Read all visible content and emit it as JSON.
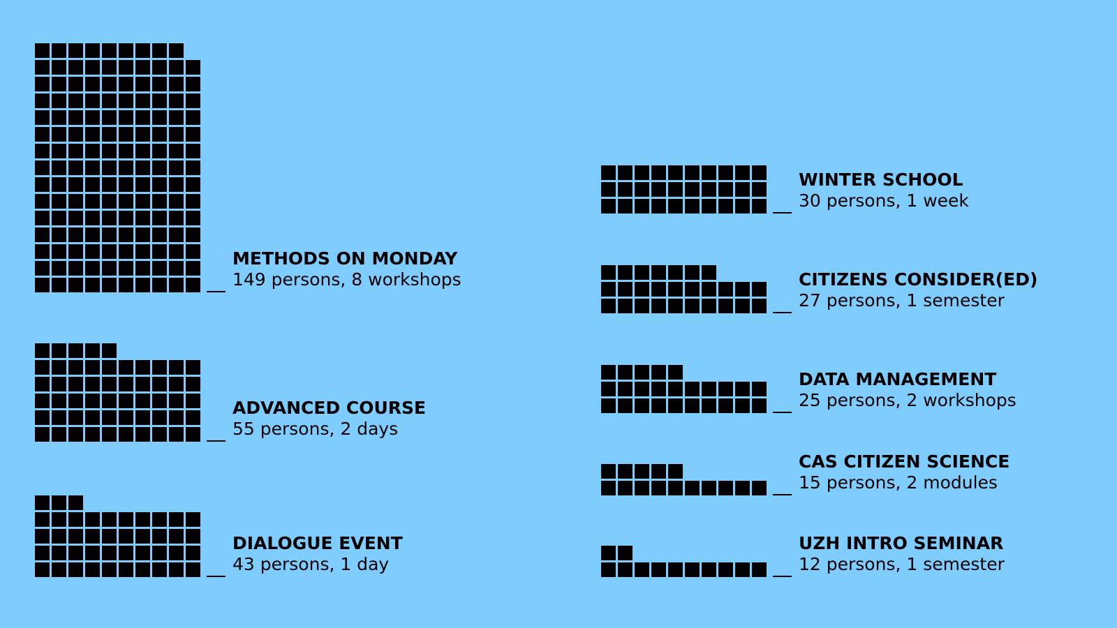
{
  "colors": {
    "background": "#7fccff",
    "squares": "#000000",
    "text": "#000000"
  },
  "chart_data": {
    "type": "waffle",
    "units_per_row": 10,
    "items": [
      {
        "id": "methods",
        "title": "METHODS ON MONDAY",
        "detail": "149 persons, 8 workshops",
        "value": 149
      },
      {
        "id": "advanced",
        "title": "ADVANCED COURSE",
        "detail": "55 persons, 2 days",
        "value": 55
      },
      {
        "id": "dialogue",
        "title": "DIALOGUE EVENT",
        "detail": "43 persons, 1 day",
        "value": 43
      },
      {
        "id": "winter",
        "title": "WINTER SCHOOL",
        "detail": "30 persons, 1 week",
        "value": 30
      },
      {
        "id": "citizens",
        "title": "CITIZENS CONSIDER(ED)",
        "detail": "27 persons, 1 semester",
        "value": 27
      },
      {
        "id": "datamgmt",
        "title": "DATA MANAGEMENT",
        "detail": "25 persons, 2 workshops",
        "value": 25
      },
      {
        "id": "cas",
        "title": "CAS CITIZEN SCIENCE",
        "detail": "15 persons, 2 modules",
        "value": 15
      },
      {
        "id": "uzh",
        "title": "UZH INTRO SEMINAR",
        "detail": "12 persons, 1 semester",
        "value": 12
      }
    ]
  }
}
